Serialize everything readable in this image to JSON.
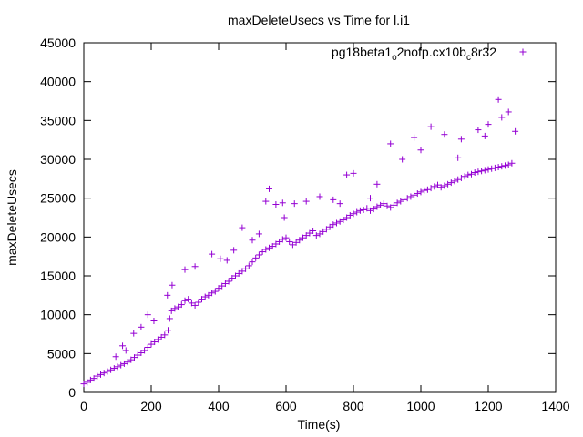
{
  "chart_data": {
    "type": "scatter",
    "title": "maxDeleteUsecs vs Time for l.i1",
    "xlabel": "Time(s)",
    "ylabel": "maxDeleteUsecs",
    "xlim": [
      0,
      1400
    ],
    "ylim": [
      0,
      45000
    ],
    "x_ticks": [
      0,
      200,
      400,
      600,
      800,
      1000,
      1200,
      1400
    ],
    "y_ticks": [
      0,
      5000,
      10000,
      15000,
      20000,
      25000,
      30000,
      35000,
      40000,
      45000
    ],
    "grid": false,
    "legend_position": "top-right",
    "legend": {
      "label_parts": [
        "pg18beta1",
        "o",
        "2nofp.cx10b",
        "c",
        "8r32"
      ]
    },
    "series": [
      {
        "name": "pg18beta1_o2nofp.cx10b_c8r32",
        "color": "#9400d3",
        "marker": "plus",
        "points": [
          [
            0,
            1100
          ],
          [
            10,
            1300
          ],
          [
            20,
            1600
          ],
          [
            30,
            1800
          ],
          [
            40,
            2100
          ],
          [
            50,
            2300
          ],
          [
            60,
            2500
          ],
          [
            70,
            2700
          ],
          [
            80,
            2900
          ],
          [
            90,
            3100
          ],
          [
            100,
            3300
          ],
          [
            110,
            3500
          ],
          [
            120,
            3700
          ],
          [
            130,
            3900
          ],
          [
            140,
            4200
          ],
          [
            150,
            4500
          ],
          [
            160,
            4800
          ],
          [
            170,
            5100
          ],
          [
            180,
            5400
          ],
          [
            190,
            5800
          ],
          [
            200,
            6200
          ],
          [
            210,
            6500
          ],
          [
            220,
            6800
          ],
          [
            230,
            7100
          ],
          [
            240,
            7400
          ],
          [
            250,
            8000
          ],
          [
            255,
            9500
          ],
          [
            260,
            10500
          ],
          [
            270,
            10800
          ],
          [
            280,
            11000
          ],
          [
            290,
            11300
          ],
          [
            300,
            11800
          ],
          [
            310,
            12000
          ],
          [
            320,
            11500
          ],
          [
            330,
            11200
          ],
          [
            340,
            11600
          ],
          [
            350,
            12000
          ],
          [
            360,
            12300
          ],
          [
            370,
            12500
          ],
          [
            380,
            12800
          ],
          [
            390,
            13000
          ],
          [
            400,
            13400
          ],
          [
            410,
            13700
          ],
          [
            420,
            14000
          ],
          [
            430,
            14300
          ],
          [
            440,
            14700
          ],
          [
            450,
            15000
          ],
          [
            460,
            15300
          ],
          [
            470,
            15600
          ],
          [
            480,
            15900
          ],
          [
            490,
            16300
          ],
          [
            500,
            16800
          ],
          [
            510,
            17300
          ],
          [
            520,
            17700
          ],
          [
            530,
            18100
          ],
          [
            540,
            18400
          ],
          [
            550,
            18600
          ],
          [
            560,
            18800
          ],
          [
            570,
            19100
          ],
          [
            580,
            19400
          ],
          [
            590,
            19700
          ],
          [
            600,
            19900
          ],
          [
            610,
            19400
          ],
          [
            620,
            19000
          ],
          [
            630,
            19300
          ],
          [
            640,
            19600
          ],
          [
            650,
            19900
          ],
          [
            660,
            20200
          ],
          [
            670,
            20500
          ],
          [
            680,
            20800
          ],
          [
            690,
            20200
          ],
          [
            700,
            20400
          ],
          [
            710,
            20700
          ],
          [
            720,
            21000
          ],
          [
            730,
            21300
          ],
          [
            740,
            21600
          ],
          [
            750,
            21800
          ],
          [
            760,
            22000
          ],
          [
            770,
            22200
          ],
          [
            780,
            22500
          ],
          [
            790,
            22800
          ],
          [
            800,
            23000
          ],
          [
            810,
            23200
          ],
          [
            820,
            23400
          ],
          [
            830,
            23500
          ],
          [
            840,
            23700
          ],
          [
            850,
            23400
          ],
          [
            860,
            23600
          ],
          [
            870,
            23900
          ],
          [
            880,
            24100
          ],
          [
            890,
            24300
          ],
          [
            900,
            24000
          ],
          [
            910,
            23800
          ],
          [
            920,
            24100
          ],
          [
            930,
            24400
          ],
          [
            940,
            24600
          ],
          [
            950,
            24800
          ],
          [
            960,
            25000
          ],
          [
            970,
            25200
          ],
          [
            980,
            25400
          ],
          [
            990,
            25600
          ],
          [
            1000,
            25800
          ],
          [
            1010,
            26000
          ],
          [
            1020,
            26100
          ],
          [
            1030,
            26300
          ],
          [
            1040,
            26500
          ],
          [
            1050,
            26700
          ],
          [
            1060,
            26400
          ],
          [
            1070,
            26600
          ],
          [
            1080,
            26800
          ],
          [
            1090,
            27000
          ],
          [
            1100,
            27200
          ],
          [
            1110,
            27400
          ],
          [
            1120,
            27600
          ],
          [
            1130,
            27800
          ],
          [
            1140,
            28000
          ],
          [
            1150,
            28100
          ],
          [
            1160,
            28300
          ],
          [
            1170,
            28400
          ],
          [
            1180,
            28500
          ],
          [
            1190,
            28600
          ],
          [
            1200,
            28700
          ],
          [
            1210,
            28800
          ],
          [
            1220,
            28900
          ],
          [
            1230,
            29000
          ],
          [
            1240,
            29100
          ],
          [
            1250,
            29200
          ],
          [
            1260,
            29300
          ],
          [
            1270,
            29500
          ],
          [
            95,
            4600
          ],
          [
            115,
            6000
          ],
          [
            125,
            5400
          ],
          [
            148,
            7600
          ],
          [
            170,
            8400
          ],
          [
            190,
            10000
          ],
          [
            208,
            9200
          ],
          [
            248,
            12500
          ],
          [
            262,
            13800
          ],
          [
            300,
            15800
          ],
          [
            330,
            16200
          ],
          [
            380,
            17800
          ],
          [
            405,
            17200
          ],
          [
            425,
            17000
          ],
          [
            445,
            18300
          ],
          [
            470,
            21200
          ],
          [
            500,
            19600
          ],
          [
            520,
            20400
          ],
          [
            540,
            24600
          ],
          [
            550,
            26200
          ],
          [
            570,
            24200
          ],
          [
            590,
            24400
          ],
          [
            595,
            22500
          ],
          [
            625,
            24300
          ],
          [
            660,
            24600
          ],
          [
            700,
            25200
          ],
          [
            740,
            24800
          ],
          [
            760,
            24300
          ],
          [
            780,
            28000
          ],
          [
            800,
            28200
          ],
          [
            850,
            25000
          ],
          [
            870,
            26800
          ],
          [
            910,
            32000
          ],
          [
            945,
            30000
          ],
          [
            980,
            32800
          ],
          [
            1000,
            31200
          ],
          [
            1030,
            34200
          ],
          [
            1070,
            33200
          ],
          [
            1110,
            30200
          ],
          [
            1120,
            32600
          ],
          [
            1170,
            33800
          ],
          [
            1190,
            33000
          ],
          [
            1200,
            34500
          ],
          [
            1230,
            37700
          ],
          [
            1240,
            35400
          ],
          [
            1260,
            36100
          ],
          [
            1280,
            33600
          ]
        ]
      }
    ]
  }
}
